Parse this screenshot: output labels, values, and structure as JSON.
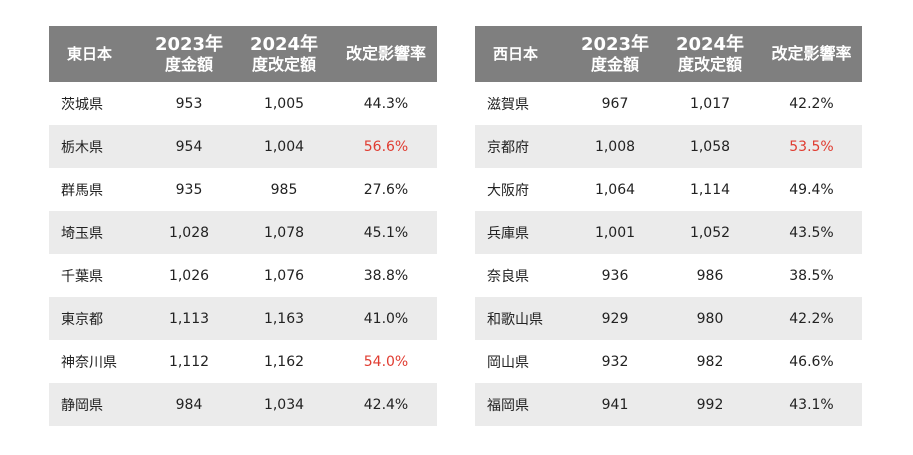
{
  "headers": {
    "east_region": "東日本",
    "west_region": "西日本",
    "col_2023": [
      "2023年",
      "度金額"
    ],
    "col_2024": [
      "2024年",
      "度改定額"
    ],
    "col_impact": "改定影響率"
  },
  "colors": {
    "header_bg": "#7f7f7f",
    "shade_bg": "#ebebeb",
    "highlight": "#e03c31"
  },
  "east": [
    {
      "pref": "茨城県",
      "y2023": "953",
      "y2024": "1,005",
      "rate": "44.3%",
      "highlight": false
    },
    {
      "pref": "栃木県",
      "y2023": "954",
      "y2024": "1,004",
      "rate": "56.6%",
      "highlight": true
    },
    {
      "pref": "群馬県",
      "y2023": "935",
      "y2024": "985",
      "rate": "27.6%",
      "highlight": false
    },
    {
      "pref": "埼玉県",
      "y2023": "1,028",
      "y2024": "1,078",
      "rate": "45.1%",
      "highlight": false
    },
    {
      "pref": "千葉県",
      "y2023": "1,026",
      "y2024": "1,076",
      "rate": "38.8%",
      "highlight": false
    },
    {
      "pref": "東京都",
      "y2023": "1,113",
      "y2024": "1,163",
      "rate": "41.0%",
      "highlight": false
    },
    {
      "pref": "神奈川県",
      "y2023": "1,112",
      "y2024": "1,162",
      "rate": "54.0%",
      "highlight": true
    },
    {
      "pref": "静岡県",
      "y2023": "984",
      "y2024": "1,034",
      "rate": "42.4%",
      "highlight": false
    }
  ],
  "west": [
    {
      "pref": "滋賀県",
      "y2023": "967",
      "y2024": "1,017",
      "rate": "42.2%",
      "highlight": false
    },
    {
      "pref": "京都府",
      "y2023": "1,008",
      "y2024": "1,058",
      "rate": "53.5%",
      "highlight": true
    },
    {
      "pref": "大阪府",
      "y2023": "1,064",
      "y2024": "1,114",
      "rate": "49.4%",
      "highlight": false
    },
    {
      "pref": "兵庫県",
      "y2023": "1,001",
      "y2024": "1,052",
      "rate": "43.5%",
      "highlight": false
    },
    {
      "pref": "奈良県",
      "y2023": "936",
      "y2024": "986",
      "rate": "38.5%",
      "highlight": false
    },
    {
      "pref": "和歌山県",
      "y2023": "929",
      "y2024": "980",
      "rate": "42.2%",
      "highlight": false
    },
    {
      "pref": "岡山県",
      "y2023": "932",
      "y2024": "982",
      "rate": "46.6%",
      "highlight": false
    },
    {
      "pref": "福岡県",
      "y2023": "941",
      "y2024": "992",
      "rate": "43.1%",
      "highlight": false
    }
  ]
}
